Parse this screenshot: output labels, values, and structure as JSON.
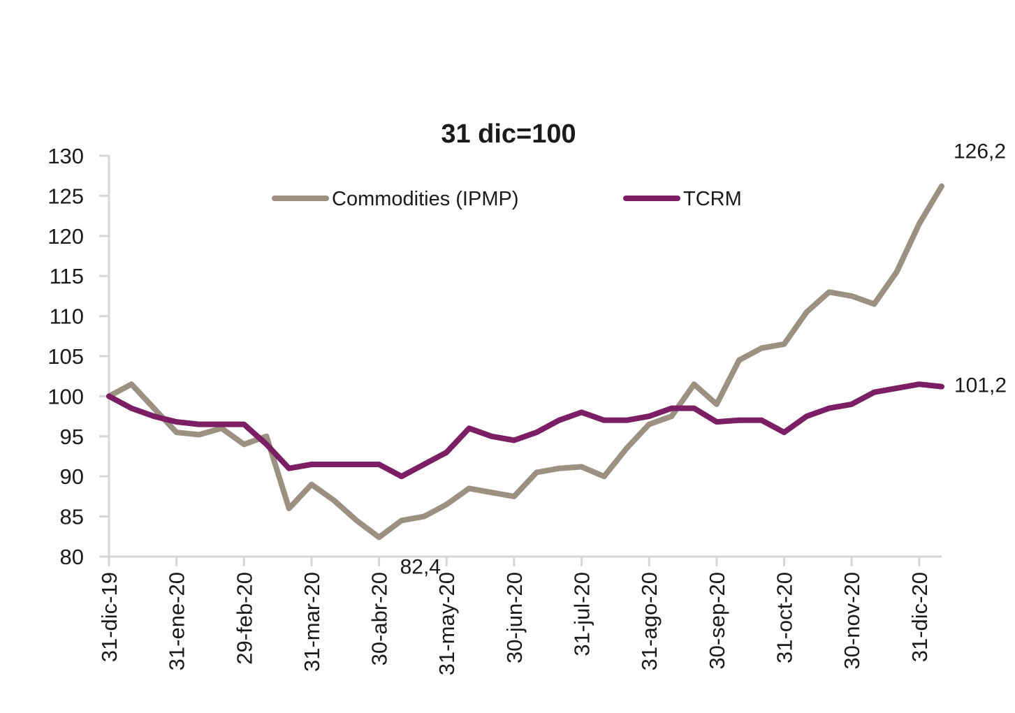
{
  "chart_data": {
    "type": "line",
    "title": "31 dic=100",
    "xlabel": "",
    "ylabel": "",
    "ylim": [
      80,
      130
    ],
    "yticks": [
      "130",
      "125",
      "120",
      "115",
      "110",
      "105",
      "100",
      "95",
      "90",
      "85",
      "80"
    ],
    "xticks": [
      "31-dic-19",
      "31-ene-20",
      "29-feb-20",
      "31-mar-20",
      "30-abr-20",
      "31-may-20",
      "30-jun-20",
      "31-jul-20",
      "31-ago-20",
      "30-sep-20",
      "31-oct-20",
      "30-nov-20",
      "31-dic-20"
    ],
    "grid": false,
    "legend": "top",
    "x": [
      "31-dic-19",
      "10-ene-20",
      "20-ene-20",
      "31-ene-20",
      "10-feb-20",
      "20-feb-20",
      "29-feb-20",
      "10-mar-20",
      "20-mar-20",
      "31-mar-20",
      "10-abr-20",
      "20-abr-20",
      "30-abr-20",
      "10-may-20",
      "20-may-20",
      "31-may-20",
      "10-jun-20",
      "20-jun-20",
      "30-jun-20",
      "10-jul-20",
      "20-jul-20",
      "31-jul-20",
      "10-ago-20",
      "20-ago-20",
      "31-ago-20",
      "10-sep-20",
      "20-sep-20",
      "30-sep-20",
      "10-oct-20",
      "20-oct-20",
      "31-oct-20",
      "10-nov-20",
      "20-nov-20",
      "30-nov-20",
      "10-dic-20",
      "20-dic-20",
      "31-dic-20",
      "14-ene-21"
    ],
    "series": [
      {
        "name": "Commodities (IPMP)",
        "color": "#9c9080",
        "values": [
          100,
          101.5,
          98.5,
          95.5,
          95.2,
          96,
          94,
          95,
          86,
          89,
          87,
          84.5,
          82.4,
          84.5,
          85,
          86.5,
          88.5,
          88,
          87.5,
          90.5,
          91,
          91.2,
          90,
          93.5,
          96.5,
          97.5,
          101.5,
          99,
          104.5,
          106,
          106.5,
          110.5,
          113,
          112.5,
          111.5,
          115.5,
          121.5,
          126.2
        ]
      },
      {
        "name": "TCRM",
        "color": "#7b1e63",
        "values": [
          100,
          98.5,
          97.5,
          96.8,
          96.5,
          96.5,
          96.5,
          94,
          91,
          91.5,
          91.5,
          91.5,
          91.5,
          90,
          91.5,
          93,
          96,
          95,
          94.5,
          95.5,
          97,
          98,
          97,
          97,
          97.5,
          98.5,
          98.5,
          96.8,
          97,
          97,
          95.5,
          97.5,
          98.5,
          99,
          100.5,
          101,
          101.5,
          101.2
        ]
      }
    ],
    "annotations": [
      {
        "text": "126,2",
        "series": 0,
        "point": 37
      },
      {
        "text": "101,2",
        "series": 1,
        "point": 37
      },
      {
        "text": "82,4",
        "series": 0,
        "point": 12
      }
    ]
  }
}
